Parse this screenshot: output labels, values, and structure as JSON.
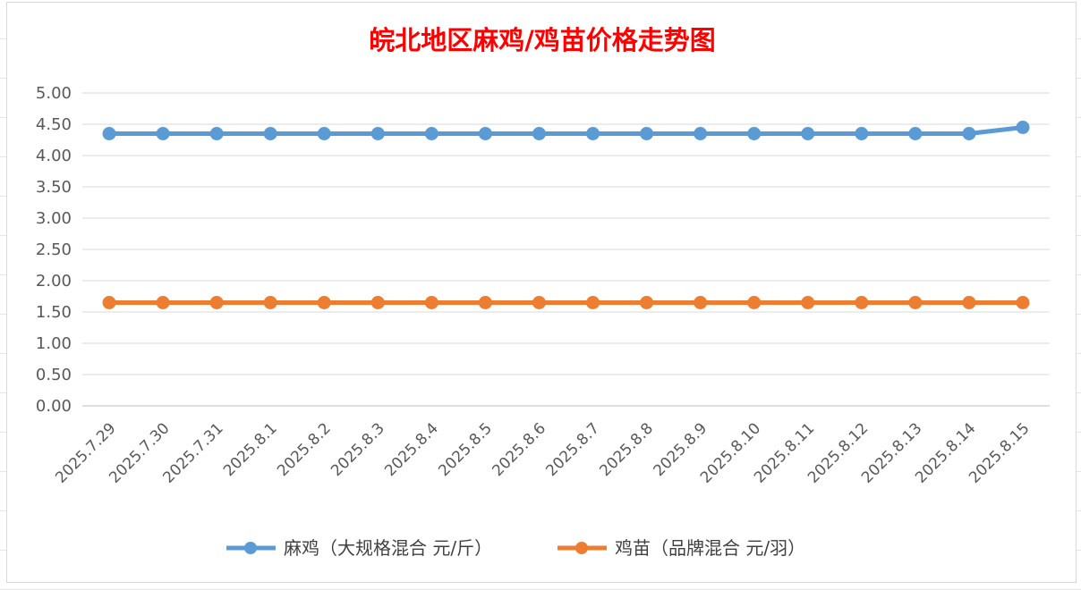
{
  "chart_data": {
    "type": "line",
    "title": "皖北地区麻鸡/鸡苗价格走势图",
    "categories": [
      "2025.7.29",
      "2025.7.30",
      "2025.7.31",
      "2025.8.1",
      "2025.8.2",
      "2025.8.3",
      "2025.8.4",
      "2025.8.5",
      "2025.8.6",
      "2025.8.7",
      "2025.8.8",
      "2025.8.9",
      "2025.8.10",
      "2025.8.11",
      "2025.8.12",
      "2025.8.13",
      "2025.8.14",
      "2025.8.15"
    ],
    "series": [
      {
        "name": "麻鸡（大规格混合 元/斤）",
        "color": "#5b9bd5",
        "values": [
          4.35,
          4.35,
          4.35,
          4.35,
          4.35,
          4.35,
          4.35,
          4.35,
          4.35,
          4.35,
          4.35,
          4.35,
          4.35,
          4.35,
          4.35,
          4.35,
          4.35,
          4.45
        ]
      },
      {
        "name": "鸡苗（品牌混合 元/羽）",
        "color": "#ed7d31",
        "values": [
          1.65,
          1.65,
          1.65,
          1.65,
          1.65,
          1.65,
          1.65,
          1.65,
          1.65,
          1.65,
          1.65,
          1.65,
          1.65,
          1.65,
          1.65,
          1.65,
          1.65,
          1.65
        ]
      }
    ],
    "yticks": [
      "0.00",
      "0.50",
      "1.00",
      "1.50",
      "2.00",
      "2.50",
      "3.00",
      "3.50",
      "4.00",
      "4.50",
      "5.00"
    ],
    "ylim": [
      0,
      5
    ],
    "grid": true,
    "legend": "bottom",
    "xlabel": "",
    "ylabel": ""
  }
}
